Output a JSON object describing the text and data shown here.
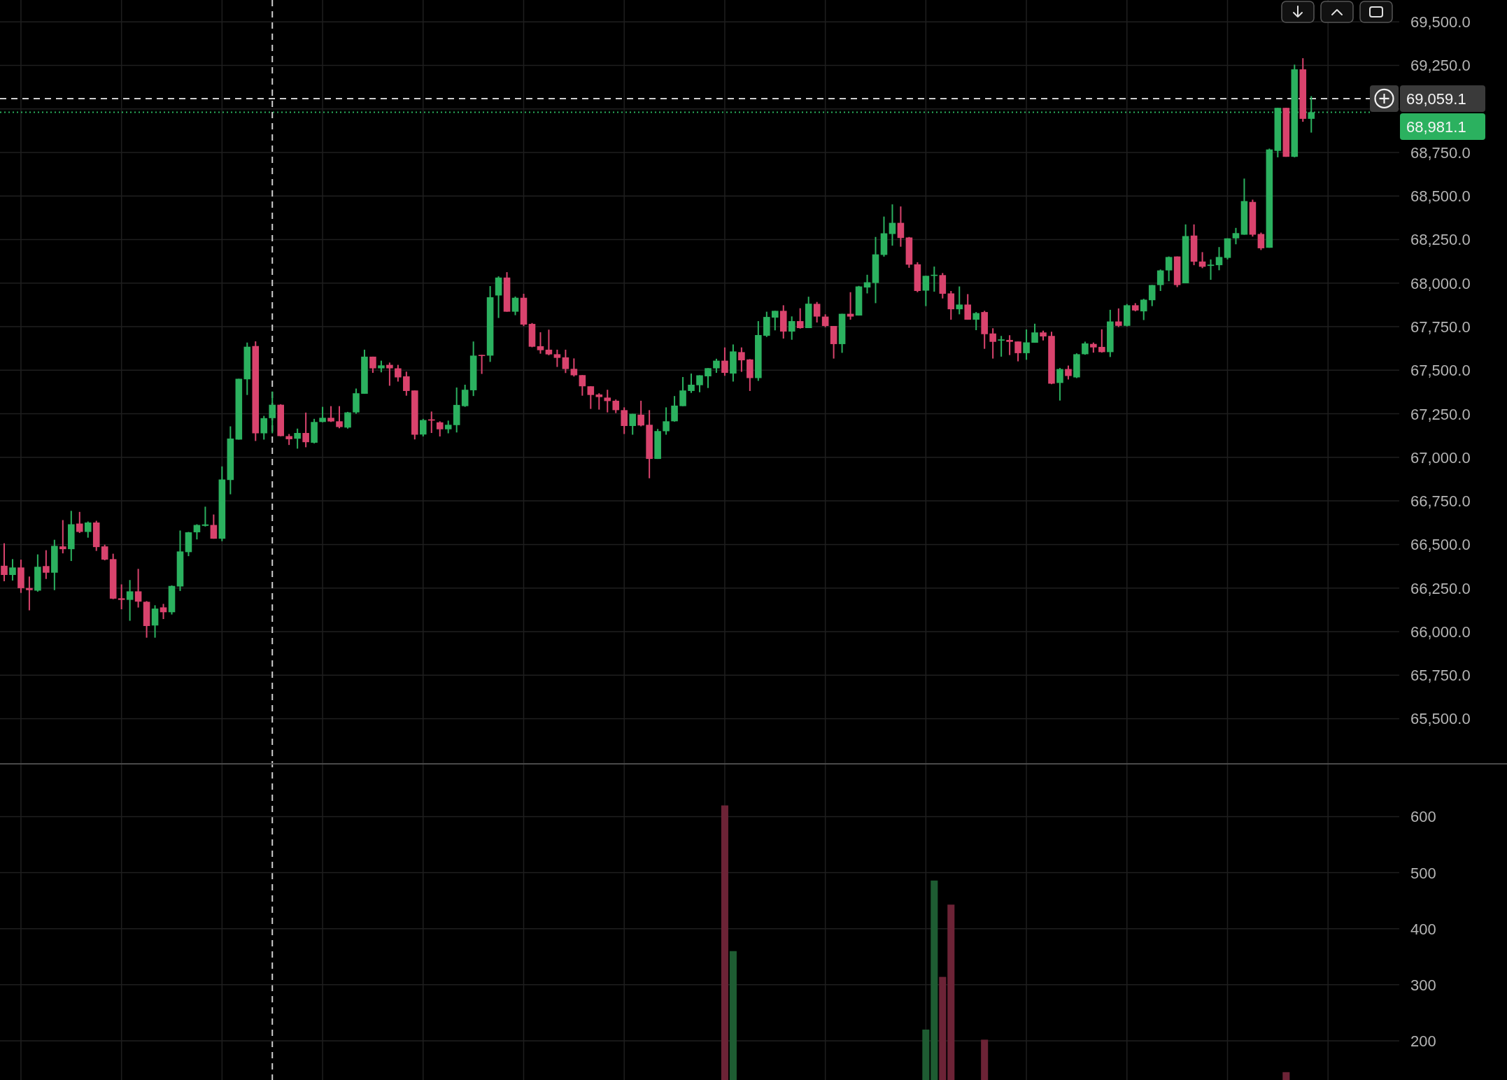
{
  "chart_data": [
    {
      "type": "candlestick",
      "categories": [
        null,
        null,
        null,
        null,
        null,
        null,
        null,
        null,
        null,
        null,
        null,
        null,
        null,
        null,
        null,
        null,
        null,
        null,
        null,
        null,
        null,
        null,
        null,
        null,
        null,
        null,
        null,
        null,
        null,
        null,
        null,
        null,
        null,
        null,
        null,
        null,
        null,
        null,
        null,
        null,
        null,
        null,
        null,
        null,
        null,
        null,
        null,
        null,
        null,
        null,
        null,
        null,
        null,
        null,
        null,
        null,
        null,
        null,
        null,
        null,
        null,
        null,
        null,
        null,
        null,
        null,
        null,
        null,
        null,
        null,
        null,
        null,
        null,
        null,
        null,
        null,
        null,
        null,
        null,
        null,
        null,
        null,
        null,
        null,
        null,
        null,
        null,
        null,
        null,
        null,
        null,
        null,
        null,
        null,
        null,
        null,
        null,
        null,
        null,
        null,
        null,
        null,
        null,
        null,
        null,
        null,
        null,
        null,
        null,
        null,
        null,
        null,
        null,
        null,
        null,
        null,
        null,
        null,
        null,
        null,
        null,
        null,
        null,
        null,
        null,
        null,
        null,
        null,
        null,
        null,
        null,
        null,
        null,
        null,
        null,
        null,
        null,
        null,
        null,
        null,
        null,
        null,
        null,
        null,
        null,
        null,
        null,
        null,
        null,
        null,
        null,
        null,
        null,
        null,
        null,
        null,
        null,
        null,
        null,
        null,
        null,
        null,
        null,
        null,
        null,
        null,
        null
      ],
      "ohlc": [
        [
          66378,
          66507,
          66289,
          66325
        ],
        [
          66325,
          66416,
          66293,
          66368
        ],
        [
          66368,
          66413,
          66222,
          66249
        ],
        [
          66250,
          66316,
          66122,
          66238
        ],
        [
          66235,
          66443,
          66229,
          66372
        ],
        [
          66376,
          66467,
          66302,
          66338
        ],
        [
          66338,
          66527,
          66238,
          66492
        ],
        [
          66489,
          66640,
          66449,
          66473
        ],
        [
          66473,
          66693,
          66405,
          66616
        ],
        [
          66620,
          66687,
          66566,
          66572
        ],
        [
          66572,
          66632,
          66539,
          66626
        ],
        [
          66626,
          66636,
          66463,
          66485
        ],
        [
          66489,
          66499,
          66409,
          66413
        ],
        [
          66416,
          66447,
          66186,
          66189
        ],
        [
          66191,
          66271,
          66128,
          66182
        ],
        [
          66182,
          66296,
          66062,
          66231
        ],
        [
          66231,
          66360,
          66138,
          66172
        ],
        [
          66171,
          66175,
          65965,
          66032
        ],
        [
          66035,
          66151,
          65965,
          66132
        ],
        [
          66139,
          66159,
          66072,
          66111
        ],
        [
          66111,
          66265,
          66098,
          66262
        ],
        [
          66259,
          66580,
          66233,
          66460
        ],
        [
          66456,
          66572,
          66433,
          66570
        ],
        [
          66570,
          66616,
          66529,
          66612
        ],
        [
          66607,
          66717,
          66603,
          66615
        ],
        [
          66612,
          66672,
          66533,
          66533
        ],
        [
          66533,
          66948,
          66519,
          66873
        ],
        [
          66870,
          67178,
          66788,
          67108
        ],
        [
          67102,
          67451,
          67102,
          67451
        ],
        [
          67448,
          67659,
          67358,
          67635
        ],
        [
          67639,
          67666,
          67094,
          67138
        ],
        [
          67138,
          67238,
          67102,
          67225
        ],
        [
          67225,
          67378,
          67138,
          67302
        ],
        [
          67302,
          67305,
          67121,
          67122
        ],
        [
          67122,
          67134,
          67071,
          67104
        ],
        [
          67107,
          67165,
          67050,
          67140
        ],
        [
          67140,
          67257,
          67058,
          67087
        ],
        [
          67084,
          67221,
          67080,
          67203
        ],
        [
          67203,
          67290,
          67201,
          67227
        ],
        [
          67227,
          67294,
          67203,
          67206
        ],
        [
          67207,
          67294,
          67167,
          67174
        ],
        [
          67171,
          67261,
          67165,
          67258
        ],
        [
          67258,
          67395,
          67250,
          67368
        ],
        [
          67365,
          67618,
          67365,
          67578
        ],
        [
          67578,
          67578,
          67485,
          67511
        ],
        [
          67511,
          67555,
          67488,
          67528
        ],
        [
          67531,
          67544,
          67411,
          67511
        ],
        [
          67511,
          67531,
          67435,
          67459
        ],
        [
          67465,
          67492,
          67354,
          67381
        ],
        [
          67384,
          67384,
          67103,
          67130
        ],
        [
          67131,
          67221,
          67120,
          67214
        ],
        [
          67218,
          67263,
          67140,
          67211
        ],
        [
          67201,
          67207,
          67120,
          67161
        ],
        [
          67161,
          67211,
          67138,
          67187
        ],
        [
          67185,
          67401,
          67143,
          67301
        ],
        [
          67294,
          67417,
          67290,
          67388
        ],
        [
          67385,
          67665,
          67352,
          67584
        ],
        [
          67588,
          67588,
          67479,
          67584
        ],
        [
          67584,
          67983,
          67548,
          67919
        ],
        [
          67929,
          68039,
          67800,
          68032
        ],
        [
          68032,
          68063,
          67836,
          67836
        ],
        [
          67836,
          67923,
          67816,
          67916
        ],
        [
          67916,
          67939,
          67753,
          67762
        ],
        [
          67766,
          67771,
          67632,
          67635
        ],
        [
          67638,
          67718,
          67595,
          67615
        ],
        [
          67618,
          67733,
          67586,
          67591
        ],
        [
          67592,
          67618,
          67519,
          67571
        ],
        [
          67574,
          67618,
          67484,
          67507
        ],
        [
          67508,
          67568,
          67464,
          67471
        ],
        [
          67472,
          67472,
          67354,
          67408
        ],
        [
          67408,
          67408,
          67278,
          67358
        ],
        [
          67361,
          67368,
          67274,
          67346
        ],
        [
          67343,
          67388,
          67258,
          67323
        ],
        [
          67325,
          67332,
          67254,
          67271
        ],
        [
          67271,
          67287,
          67134,
          67180
        ],
        [
          67180,
          67250,
          67130,
          67250
        ],
        [
          67245,
          67325,
          67178,
          67183
        ],
        [
          67187,
          67271,
          66880,
          66991
        ],
        [
          66991,
          67163,
          66991,
          67151
        ],
        [
          67150,
          67287,
          67130,
          67207
        ],
        [
          67207,
          67352,
          67205,
          67297
        ],
        [
          67294,
          67461,
          67294,
          67384
        ],
        [
          67381,
          67481,
          67370,
          67417
        ],
        [
          67414,
          67471,
          67374,
          67471
        ],
        [
          67465,
          67512,
          67398,
          67512
        ],
        [
          67511,
          67566,
          67485,
          67555
        ],
        [
          67555,
          67631,
          67468,
          67485
        ],
        [
          67481,
          67648,
          67435,
          67608
        ],
        [
          67604,
          67631,
          67491,
          67557
        ],
        [
          67562,
          67564,
          67381,
          67455
        ],
        [
          67455,
          67782,
          67439,
          67702
        ],
        [
          67698,
          67836,
          67691,
          67806
        ],
        [
          67802,
          67841,
          67729,
          67841
        ],
        [
          67841,
          67873,
          67682,
          67722
        ],
        [
          67722,
          67809,
          67675,
          67782
        ],
        [
          67782,
          67856,
          67739,
          67742
        ],
        [
          67742,
          67922,
          67742,
          67882
        ],
        [
          67881,
          67892,
          67774,
          67808
        ],
        [
          67808,
          67821,
          67747,
          67754
        ],
        [
          67754,
          67754,
          67567,
          67650
        ],
        [
          67650,
          67824,
          67600,
          67824
        ],
        [
          67824,
          67948,
          67790,
          67808
        ],
        [
          67814,
          67984,
          67814,
          67981
        ],
        [
          67975,
          68048,
          67941,
          68005
        ],
        [
          68001,
          68265,
          67885,
          68165
        ],
        [
          68162,
          68382,
          68152,
          68286
        ],
        [
          68282,
          68452,
          68215,
          68346
        ],
        [
          68346,
          68440,
          68209,
          68259
        ],
        [
          68262,
          68265,
          68088,
          68106
        ],
        [
          68108,
          68120,
          67948,
          67955
        ],
        [
          67957,
          68042,
          67868,
          68042
        ],
        [
          68042,
          68095,
          67951,
          68048
        ],
        [
          68046,
          68058,
          67912,
          67939
        ],
        [
          67941,
          67955,
          67790,
          67850
        ],
        [
          67850,
          67981,
          67821,
          67877
        ],
        [
          67877,
          67937,
          67790,
          67790
        ],
        [
          67790,
          67834,
          67730,
          67828
        ],
        [
          67834,
          67841,
          67623,
          67707
        ],
        [
          67711,
          67741,
          67567,
          67663
        ],
        [
          67670,
          67697,
          67578,
          67677
        ],
        [
          67674,
          67701,
          67587,
          67663
        ],
        [
          67665,
          67665,
          67551,
          67598
        ],
        [
          67598,
          67734,
          67560,
          67660
        ],
        [
          67658,
          67767,
          67658,
          67717
        ],
        [
          67717,
          67727,
          67671,
          67694
        ],
        [
          67697,
          67721,
          67420,
          67423
        ],
        [
          67427,
          67513,
          67326,
          67507
        ],
        [
          67507,
          67527,
          67447,
          67467
        ],
        [
          67459,
          67597,
          67455,
          67592
        ],
        [
          67592,
          67664,
          67589,
          67654
        ],
        [
          67651,
          67659,
          67601,
          67631
        ],
        [
          67634,
          67735,
          67601,
          67604
        ],
        [
          67604,
          67847,
          67576,
          67780
        ],
        [
          67780,
          67855,
          67748,
          67755
        ],
        [
          67755,
          67880,
          67751,
          67873
        ],
        [
          67873,
          67885,
          67838,
          67843
        ],
        [
          67838,
          67910,
          67788,
          67905
        ],
        [
          67902,
          67989,
          67868,
          67989
        ],
        [
          67989,
          68078,
          67955,
          68073
        ],
        [
          68073,
          68153,
          68011,
          68150
        ],
        [
          68153,
          68153,
          67977,
          67989
        ],
        [
          67999,
          68337,
          67999,
          68270
        ],
        [
          68273,
          68337,
          68103,
          68123
        ],
        [
          68124,
          68178,
          68086,
          68094
        ],
        [
          68099,
          68136,
          68019,
          68106
        ],
        [
          68103,
          68207,
          68074,
          68150
        ],
        [
          68145,
          68257,
          68136,
          68257
        ],
        [
          68257,
          68317,
          68223,
          68287
        ],
        [
          68278,
          68600,
          68278,
          68471
        ],
        [
          68466,
          68479,
          68267,
          68278
        ],
        [
          68282,
          68290,
          68190,
          68200
        ],
        [
          68203,
          68772,
          68203,
          68767
        ],
        [
          68759,
          69006,
          68722,
          69006
        ],
        [
          69006,
          69006,
          68725,
          68725
        ],
        [
          68725,
          69254,
          68722,
          69227
        ],
        [
          69227,
          69291,
          68926,
          68943
        ],
        [
          68943,
          69073,
          68864,
          68981.1
        ],
        null,
        null,
        null,
        null,
        null,
        null,
        null,
        null,
        null,
        null
      ],
      "colors": [
        "#d9436d",
        "#2bb15f",
        "#d9436d",
        "#d9436d",
        "#2bb15f",
        "#d9436d",
        "#2bb15f",
        "#d9436d",
        "#2bb15f",
        "#d9436d",
        "#2bb15f",
        "#d9436d",
        "#d9436d",
        "#d9436d",
        "#d9436d",
        "#2bb15f",
        "#d9436d",
        "#d9436d",
        "#2bb15f",
        "#d9436d",
        "#2bb15f",
        "#2bb15f",
        "#2bb15f",
        "#2bb15f",
        "#2bb15f",
        "#d9436d",
        "#2bb15f",
        "#2bb15f",
        "#2bb15f",
        "#2bb15f",
        "#d9436d",
        "#2bb15f",
        "#2bb15f",
        "#d9436d",
        "#d9436d",
        "#2bb15f",
        "#d9436d",
        "#2bb15f",
        "#2bb15f",
        "#d9436d",
        "#d9436d",
        "#2bb15f",
        "#2bb15f",
        "#2bb15f",
        "#d9436d",
        "#2bb15f",
        "#d9436d",
        "#d9436d",
        "#d9436d",
        "#d9436d",
        "#2bb15f",
        "#d9436d",
        "#d9436d",
        "#2bb15f",
        "#2bb15f",
        "#2bb15f",
        "#2bb15f",
        "#d9436d",
        "#2bb15f",
        "#2bb15f",
        "#d9436d",
        "#2bb15f",
        "#d9436d",
        "#d9436d",
        "#d9436d",
        "#d9436d",
        "#d9436d",
        "#d9436d",
        "#d9436d",
        "#d9436d",
        "#d9436d",
        "#d9436d",
        "#d9436d",
        "#d9436d",
        "#d9436d",
        "#2bb15f",
        "#d9436d",
        "#d9436d",
        "#2bb15f",
        "#2bb15f",
        "#2bb15f",
        "#2bb15f",
        "#2bb15f",
        "#2bb15f",
        "#2bb15f",
        "#2bb15f",
        "#d9436d",
        "#2bb15f",
        "#d9436d",
        "#d9436d",
        "#2bb15f",
        "#2bb15f",
        "#2bb15f",
        "#d9436d",
        "#2bb15f",
        "#d9436d",
        "#2bb15f",
        "#d9436d",
        "#d9436d",
        "#d9436d",
        "#2bb15f",
        "#d9436d",
        "#2bb15f",
        "#2bb15f",
        "#2bb15f",
        "#2bb15f",
        "#2bb15f",
        "#d9436d",
        "#d9436d",
        "#d9436d",
        "#2bb15f",
        "#2bb15f",
        "#d9436d",
        "#d9436d",
        "#2bb15f",
        "#d9436d",
        "#2bb15f",
        "#d9436d",
        "#d9436d",
        "#2bb15f",
        "#d9436d",
        "#d9436d",
        "#2bb15f",
        "#2bb15f",
        "#d9436d",
        "#d9436d",
        "#2bb15f",
        "#d9436d",
        "#2bb15f",
        "#2bb15f",
        "#d9436d",
        "#d9436d",
        "#2bb15f",
        "#d9436d",
        "#2bb15f",
        "#d9436d",
        "#2bb15f",
        "#2bb15f",
        "#2bb15f",
        "#2bb15f",
        "#d9436d",
        "#2bb15f",
        "#d9436d",
        "#d9436d",
        "#2bb15f",
        "#2bb15f",
        "#2bb15f",
        "#2bb15f",
        "#2bb15f",
        "#d9436d",
        "#d9436d",
        "#2bb15f",
        "#2bb15f",
        "#d9436d",
        "#2bb15f",
        "#d9436d",
        "#2bb15f",
        null,
        null,
        null,
        null,
        null,
        null,
        null,
        null,
        null,
        null
      ],
      "ylim": [
        65245,
        69625
      ],
      "yticks": [
        {
          "value": 65500,
          "label": "65,500.0"
        },
        {
          "value": 65750,
          "label": "65,750.0"
        },
        {
          "value": 66000,
          "label": "66,000.0"
        },
        {
          "value": 66250,
          "label": "66,250.0"
        },
        {
          "value": 66500,
          "label": "66,500.0"
        },
        {
          "value": 66750,
          "label": "66,750.0"
        },
        {
          "value": 67000,
          "label": "67,000.0"
        },
        {
          "value": 67250,
          "label": "67,250.0"
        },
        {
          "value": 67500,
          "label": "67,500.0"
        },
        {
          "value": 67750,
          "label": "67,750.0"
        },
        {
          "value": 68000,
          "label": "68,000.0"
        },
        {
          "value": 68250,
          "label": "68,250.0"
        },
        {
          "value": 68500,
          "label": "68,500.0"
        },
        {
          "value": 68750,
          "label": "68,750.0"
        },
        {
          "value": 69000,
          "label": null
        },
        {
          "value": 69250,
          "label": "69,250.0"
        },
        {
          "value": 69500,
          "label": "69,500.0"
        }
      ],
      "grid": true,
      "tick_labels": "y",
      "ref_lines": [
        {
          "axis": "y",
          "value": 69059.1,
          "label": "69,059.1",
          "color": "#cfcfcf",
          "line_style": "dashed"
        },
        {
          "axis": "y",
          "value": 68981.1,
          "label": "68,981.1",
          "color": "#2bb15f",
          "line_style": "dotted"
        }
      ]
    },
    {
      "type": "bar",
      "categories": [
        null,
        null,
        null,
        null,
        null,
        null,
        null,
        null,
        null,
        null,
        null,
        null,
        null,
        null,
        null,
        null,
        null,
        null,
        null,
        null,
        null,
        null,
        null,
        null,
        null,
        null,
        null,
        null,
        null,
        null,
        null,
        null,
        null,
        null,
        null,
        null,
        null,
        null,
        null,
        null,
        null,
        null,
        null,
        null,
        null,
        null,
        null,
        null,
        null,
        null,
        null,
        null,
        null,
        null,
        null,
        null,
        null,
        null,
        null,
        null,
        null,
        null,
        null,
        null,
        null,
        null,
        null,
        null,
        null,
        null,
        null,
        null,
        null,
        null,
        null,
        null,
        null,
        null,
        null,
        null,
        null,
        null,
        null,
        null,
        null,
        null,
        null,
        null,
        null,
        null,
        null,
        null,
        null,
        null,
        null,
        null,
        null,
        null,
        null,
        null,
        null,
        null,
        null,
        null,
        null,
        null,
        null,
        null,
        null,
        null,
        null,
        null,
        null,
        null,
        null,
        null,
        null,
        null,
        null,
        null,
        null,
        null,
        null,
        null,
        null,
        null,
        null,
        null,
        null,
        null,
        null,
        null,
        null,
        null,
        null,
        null,
        null,
        null,
        null,
        null,
        null,
        null,
        null,
        null,
        null,
        null,
        null,
        null,
        null,
        null,
        null,
        null,
        null,
        null,
        null,
        null,
        null,
        null,
        null,
        null,
        null,
        null,
        null,
        null,
        null,
        null,
        null
      ],
      "values": [
        null,
        null,
        null,
        null,
        null,
        null,
        null,
        null,
        null,
        null,
        null,
        null,
        null,
        null,
        null,
        null,
        null,
        null,
        null,
        null,
        null,
        null,
        null,
        null,
        null,
        null,
        null,
        null,
        null,
        null,
        null,
        null,
        null,
        null,
        null,
        null,
        null,
        null,
        null,
        null,
        null,
        null,
        null,
        null,
        null,
        null,
        null,
        null,
        null,
        null,
        null,
        null,
        null,
        null,
        null,
        null,
        null,
        null,
        null,
        null,
        null,
        null,
        null,
        null,
        null,
        null,
        null,
        null,
        null,
        null,
        null,
        null,
        null,
        null,
        null,
        null,
        null,
        null,
        null,
        null,
        null,
        null,
        null,
        null,
        null,
        null,
        620,
        360,
        null,
        null,
        null,
        null,
        null,
        null,
        null,
        null,
        null,
        null,
        null,
        null,
        null,
        null,
        null,
        null,
        null,
        null,
        null,
        null,
        null,
        null,
        220,
        486,
        314,
        443,
        null,
        null,
        null,
        202,
        null,
        null,
        null,
        null,
        null,
        null,
        null,
        null,
        null,
        null,
        null,
        null,
        null,
        null,
        null,
        null,
        null,
        null,
        null,
        null,
        null,
        null,
        null,
        null,
        null,
        null,
        null,
        null,
        null,
        null,
        null,
        null,
        null,
        null,
        null,
        144,
        null,
        null,
        null,
        null,
        null,
        null,
        null,
        null,
        null,
        null,
        null,
        null,
        null
      ],
      "colors": [
        null,
        null,
        null,
        null,
        null,
        null,
        null,
        null,
        null,
        null,
        null,
        null,
        null,
        null,
        null,
        null,
        null,
        null,
        null,
        null,
        null,
        null,
        null,
        null,
        null,
        null,
        null,
        null,
        null,
        null,
        null,
        null,
        null,
        null,
        null,
        null,
        null,
        null,
        null,
        null,
        null,
        null,
        null,
        null,
        null,
        null,
        null,
        null,
        null,
        null,
        null,
        null,
        null,
        null,
        null,
        null,
        null,
        null,
        null,
        null,
        null,
        null,
        null,
        null,
        null,
        null,
        null,
        null,
        null,
        null,
        null,
        null,
        null,
        null,
        null,
        null,
        null,
        null,
        null,
        null,
        null,
        null,
        null,
        null,
        null,
        null,
        "#6c2336",
        "#1e5c32",
        null,
        null,
        null,
        null,
        null,
        null,
        null,
        null,
        null,
        null,
        null,
        null,
        null,
        null,
        null,
        null,
        null,
        null,
        null,
        null,
        null,
        null,
        "#1e5c32",
        "#1e5c32",
        "#6c2336",
        "#6c2336",
        null,
        null,
        null,
        "#6c2336",
        null,
        null,
        null,
        null,
        null,
        null,
        null,
        null,
        null,
        null,
        null,
        null,
        null,
        null,
        null,
        null,
        null,
        null,
        null,
        null,
        null,
        null,
        null,
        null,
        null,
        null,
        null,
        null,
        null,
        null,
        null,
        null,
        null,
        null,
        null,
        "#6c2336",
        null,
        null,
        null,
        null,
        null,
        null,
        null,
        null,
        null,
        null,
        null,
        null,
        null
      ],
      "ylim": [
        130,
        693
      ],
      "yticks": [
        200,
        300,
        400,
        500,
        600
      ],
      "grid": true,
      "tick_labels": "y"
    }
  ]
}
